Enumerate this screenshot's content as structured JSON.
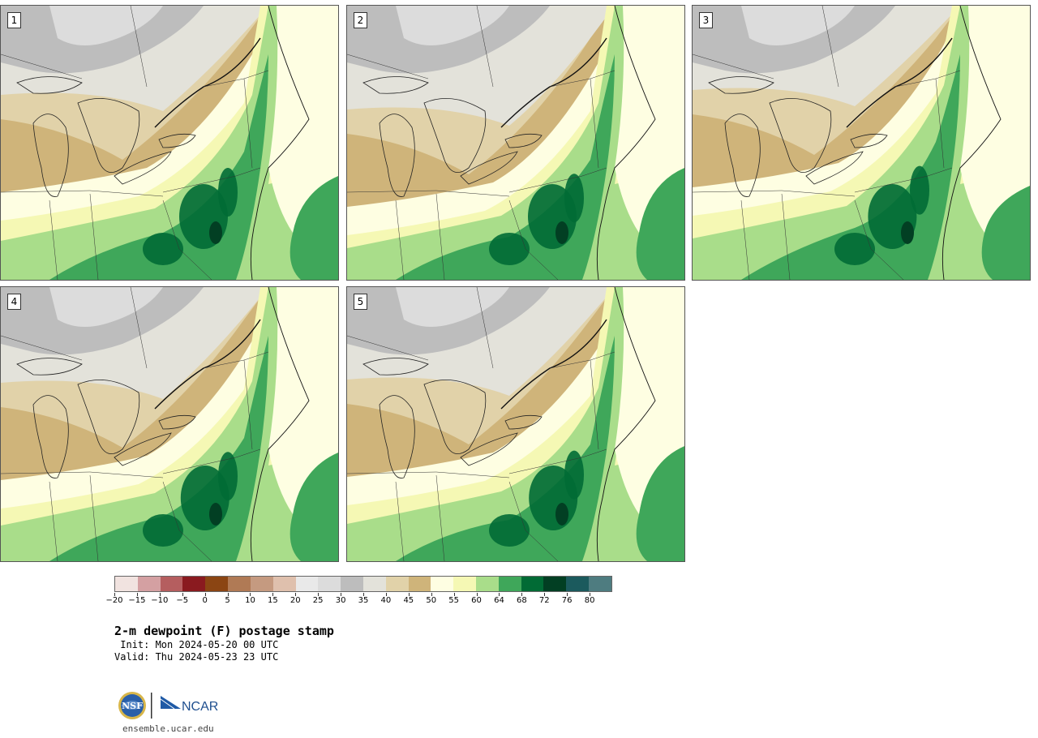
{
  "panels": [
    {
      "label": "1"
    },
    {
      "label": "2"
    },
    {
      "label": "3"
    },
    {
      "label": "4"
    },
    {
      "label": "5"
    }
  ],
  "colorbar": {
    "colors": [
      "#f1e3e0",
      "#d4a0a2",
      "#b55e5f",
      "#8a1a1f",
      "#8b4513",
      "#b07a55",
      "#c59a80",
      "#dfc0ad",
      "#e9e9e9",
      "#dcdcdc",
      "#bdbdbd",
      "#e3e2da",
      "#e1d2a9",
      "#cfb47a",
      "#fefee2",
      "#f5f8b4",
      "#a9dd8a",
      "#3fa75a",
      "#016b35",
      "#023f23",
      "#1b5a5d",
      "#4e7c80"
    ],
    "tick_labels": [
      "−20",
      "−15",
      "−10",
      "−5",
      "0",
      "5",
      "10",
      "15",
      "20",
      "25",
      "30",
      "35",
      "40",
      "45",
      "50",
      "55",
      "60",
      "64",
      "68",
      "72",
      "76",
      "80"
    ]
  },
  "title": "2-m dewpoint (F) postage stamp",
  "init_line": " Init: Mon 2024-05-20 00 UTC",
  "valid_line": "Valid: Thu 2024-05-23 23 UTC",
  "logos": {
    "nsf": "NSF",
    "ncar": "NCAR"
  },
  "footer_url": "ensemble.ucar.edu"
}
